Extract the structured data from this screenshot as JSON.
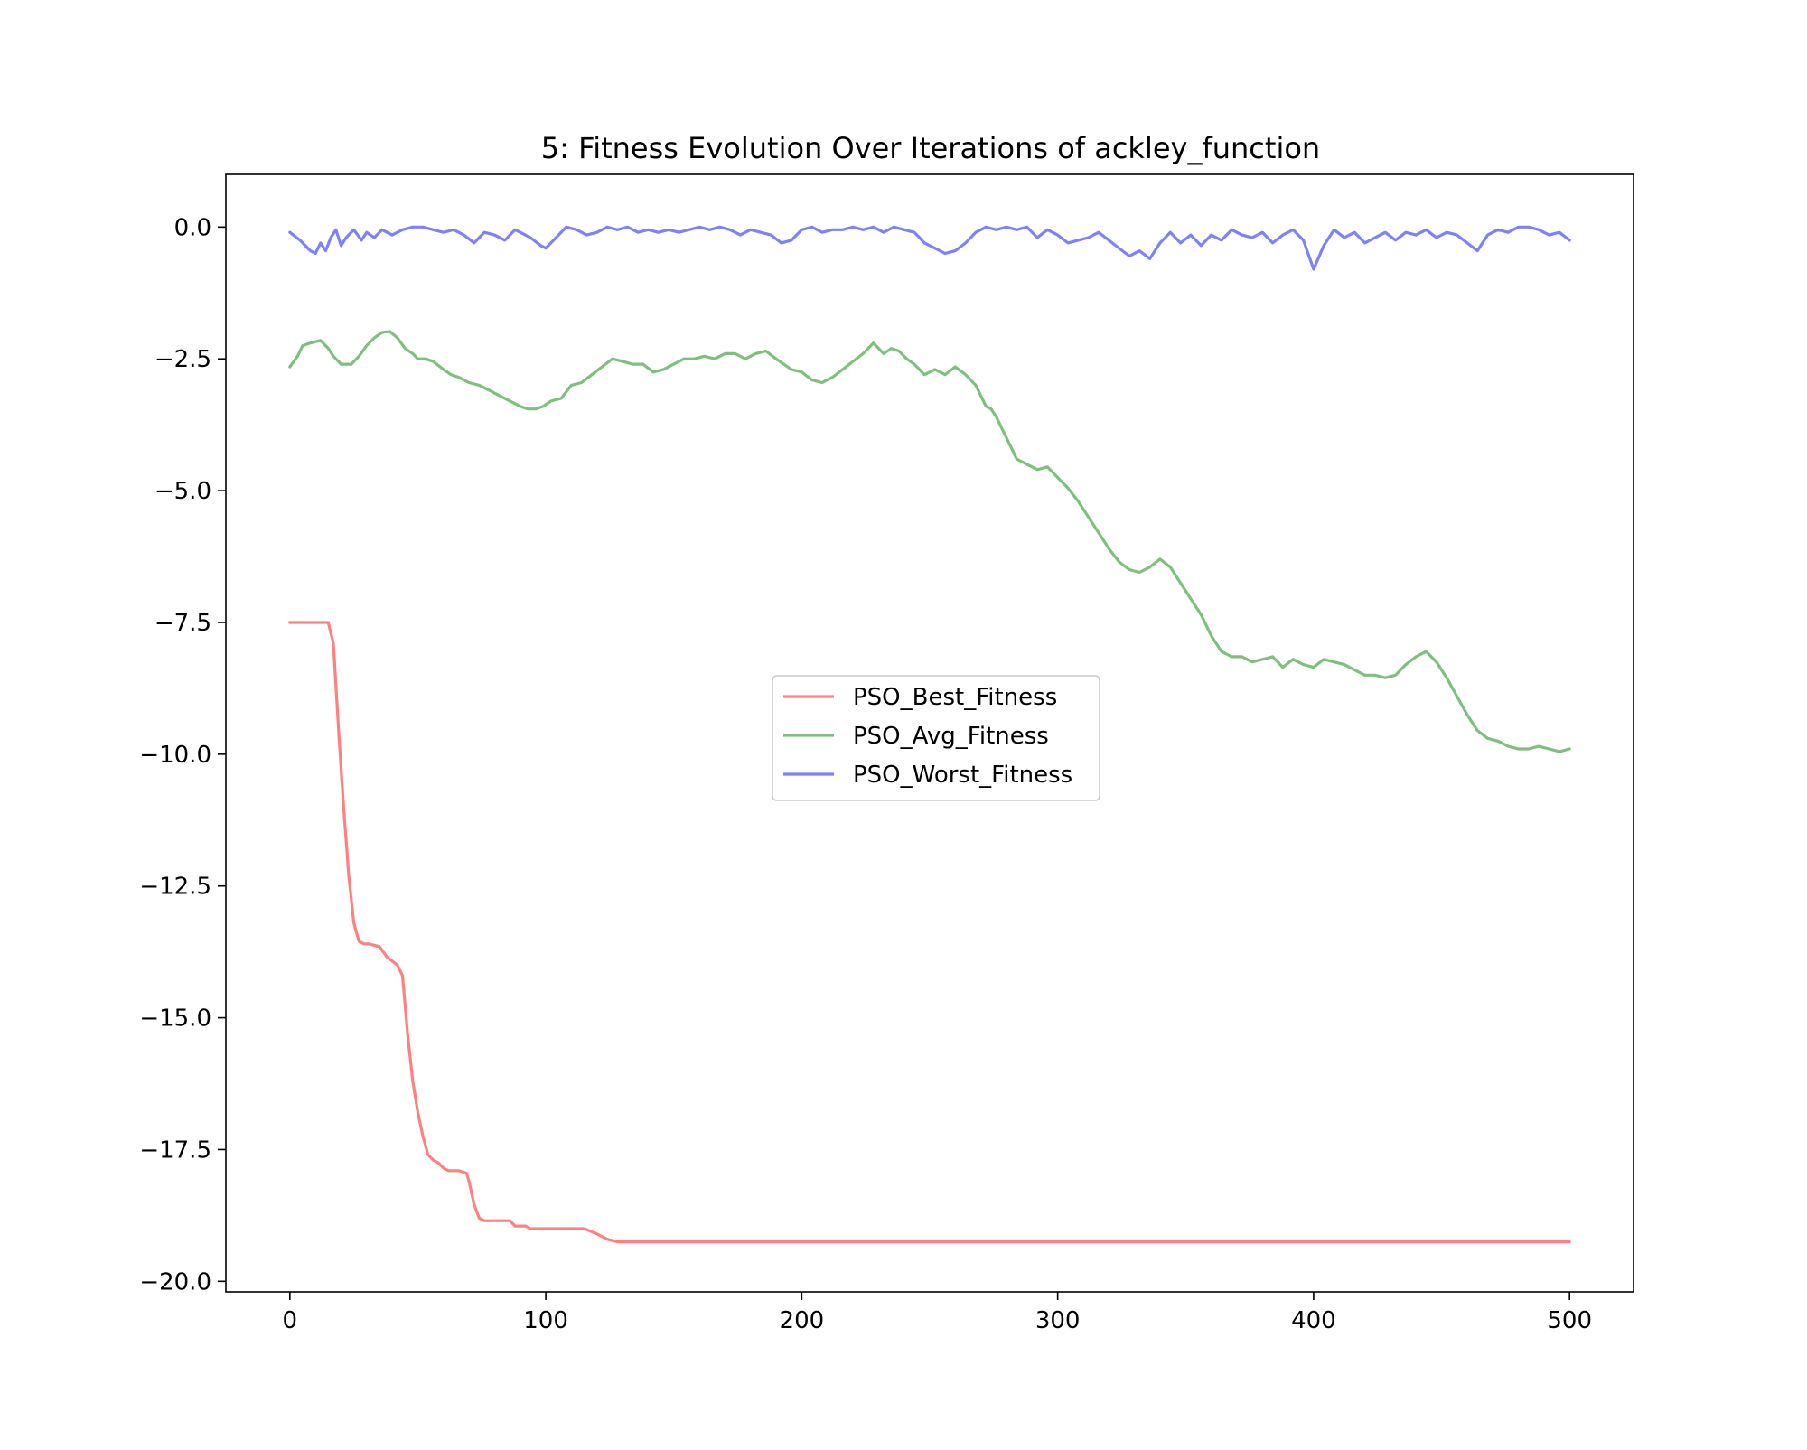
{
  "chart_data": {
    "type": "line",
    "title": "5: Fitness Evolution Over Iterations of ackley_function",
    "xlabel": "",
    "ylabel": "",
    "xlim": [
      -25,
      525
    ],
    "ylim": [
      -20.2,
      1
    ],
    "xticks": [
      0,
      100,
      200,
      300,
      400,
      500
    ],
    "xtick_labels": [
      "0",
      "100",
      "200",
      "300",
      "400",
      "500"
    ],
    "yticks": [
      0.0,
      -2.5,
      -5.0,
      -7.5,
      -10.0,
      -12.5,
      -15.0,
      -17.5,
      -20.0
    ],
    "ytick_labels": [
      "0.0",
      "−2.5",
      "−5.0",
      "−7.5",
      "−10.0",
      "−12.5",
      "−15.0",
      "−17.5",
      "−20.0"
    ],
    "grid": false,
    "legend_position": "center",
    "series": [
      {
        "name": "PSO_Best_Fitness",
        "color": "#ff8080",
        "x": [
          0,
          15,
          17,
          19,
          21,
          23,
          25,
          27,
          29,
          31,
          35,
          38,
          42,
          44,
          46,
          48,
          50,
          52,
          54,
          56,
          58,
          60,
          62,
          66,
          69,
          70,
          72,
          74,
          76,
          80,
          86,
          88,
          92,
          94,
          100,
          115,
          120,
          124,
          128,
          140,
          200,
          300,
          400,
          500
        ],
        "values": [
          -7.5,
          -7.5,
          -7.9,
          -9.5,
          -11.0,
          -12.3,
          -13.2,
          -13.55,
          -13.6,
          -13.6,
          -13.65,
          -13.85,
          -14.0,
          -14.2,
          -15.3,
          -16.2,
          -16.8,
          -17.25,
          -17.6,
          -17.7,
          -17.75,
          -17.85,
          -17.9,
          -17.9,
          -17.95,
          -18.1,
          -18.55,
          -18.8,
          -18.85,
          -18.85,
          -18.85,
          -18.95,
          -18.95,
          -19.0,
          -19.0,
          -19.0,
          -19.1,
          -19.2,
          -19.25,
          -19.25,
          -19.25,
          -19.25,
          -19.25,
          -19.25
        ]
      },
      {
        "name": "PSO_Avg_Fitness",
        "color": "#80bf80",
        "x": [
          0,
          3,
          5,
          8,
          12,
          15,
          17,
          20,
          24,
          27,
          30,
          33,
          36,
          39,
          42,
          45,
          48,
          50,
          53,
          56,
          60,
          63,
          66,
          70,
          74,
          78,
          82,
          86,
          90,
          93,
          96,
          99,
          102,
          106,
          110,
          114,
          118,
          122,
          126,
          130,
          134,
          138,
          142,
          146,
          150,
          154,
          158,
          162,
          166,
          170,
          174,
          178,
          182,
          186,
          190,
          193,
          196,
          200,
          204,
          208,
          212,
          216,
          220,
          224,
          228,
          232,
          235,
          238,
          241,
          244,
          248,
          252,
          256,
          260,
          264,
          268,
          270,
          272,
          274,
          276,
          278,
          280,
          284,
          288,
          292,
          296,
          300,
          304,
          308,
          312,
          316,
          320,
          324,
          328,
          332,
          336,
          340,
          344,
          348,
          352,
          356,
          360,
          364,
          368,
          372,
          376,
          380,
          384,
          388,
          392,
          396,
          400,
          404,
          408,
          412,
          416,
          420,
          424,
          428,
          432,
          436,
          440,
          444,
          448,
          452,
          456,
          460,
          464,
          468,
          472,
          476,
          480,
          484,
          488,
          492,
          496,
          500
        ],
        "values": [
          -2.65,
          -2.45,
          -2.25,
          -2.2,
          -2.15,
          -2.3,
          -2.45,
          -2.6,
          -2.6,
          -2.45,
          -2.25,
          -2.1,
          -2.0,
          -1.98,
          -2.1,
          -2.3,
          -2.4,
          -2.5,
          -2.5,
          -2.55,
          -2.7,
          -2.8,
          -2.85,
          -2.95,
          -3.0,
          -3.1,
          -3.2,
          -3.3,
          -3.4,
          -3.45,
          -3.45,
          -3.4,
          -3.3,
          -3.25,
          -3.0,
          -2.95,
          -2.8,
          -2.65,
          -2.5,
          -2.55,
          -2.6,
          -2.6,
          -2.75,
          -2.7,
          -2.6,
          -2.5,
          -2.5,
          -2.45,
          -2.5,
          -2.4,
          -2.4,
          -2.5,
          -2.4,
          -2.35,
          -2.5,
          -2.6,
          -2.7,
          -2.75,
          -2.9,
          -2.95,
          -2.85,
          -2.7,
          -2.55,
          -2.4,
          -2.2,
          -2.4,
          -2.3,
          -2.35,
          -2.5,
          -2.6,
          -2.8,
          -2.7,
          -2.8,
          -2.65,
          -2.8,
          -3.0,
          -3.2,
          -3.4,
          -3.45,
          -3.6,
          -3.8,
          -4.0,
          -4.4,
          -4.5,
          -4.6,
          -4.55,
          -4.75,
          -4.95,
          -5.2,
          -5.5,
          -5.8,
          -6.1,
          -6.35,
          -6.5,
          -6.55,
          -6.45,
          -6.3,
          -6.45,
          -6.75,
          -7.05,
          -7.35,
          -7.75,
          -8.05,
          -8.15,
          -8.15,
          -8.25,
          -8.2,
          -8.15,
          -8.35,
          -8.2,
          -8.3,
          -8.35,
          -8.2,
          -8.25,
          -8.3,
          -8.4,
          -8.5,
          -8.5,
          -8.55,
          -8.5,
          -8.3,
          -8.15,
          -8.05,
          -8.25,
          -8.55,
          -8.9,
          -9.25,
          -9.55,
          -9.7,
          -9.75,
          -9.85,
          -9.9,
          -9.9,
          -9.85,
          -9.9,
          -9.95,
          -9.9
        ],
        "values_note": ""
      },
      {
        "name": "PSO_Worst_Fitness",
        "color": "#8080ff",
        "x": [
          0,
          4,
          8,
          10,
          12,
          14,
          16,
          18,
          20,
          22,
          25,
          28,
          30,
          33,
          36,
          40,
          44,
          48,
          52,
          56,
          60,
          64,
          68,
          72,
          74,
          76,
          80,
          84,
          88,
          90,
          94,
          98,
          100,
          104,
          108,
          112,
          116,
          120,
          124,
          128,
          132,
          136,
          140,
          144,
          148,
          152,
          156,
          160,
          164,
          168,
          172,
          176,
          180,
          184,
          188,
          192,
          196,
          200,
          204,
          208,
          212,
          216,
          220,
          224,
          228,
          232,
          236,
          240,
          244,
          248,
          252,
          256,
          260,
          264,
          268,
          272,
          276,
          280,
          284,
          288,
          292,
          296,
          300,
          304,
          308,
          312,
          316,
          320,
          324,
          328,
          332,
          336,
          340,
          344,
          348,
          352,
          356,
          360,
          364,
          368,
          372,
          376,
          380,
          384,
          388,
          392,
          396,
          400,
          404,
          408,
          412,
          416,
          420,
          424,
          428,
          432,
          436,
          440,
          444,
          448,
          452,
          456,
          460,
          464,
          468,
          472,
          476,
          480,
          484,
          488,
          492,
          496,
          500
        ],
        "values": [
          -0.1,
          -0.25,
          -0.45,
          -0.5,
          -0.3,
          -0.45,
          -0.2,
          -0.05,
          -0.35,
          -0.2,
          -0.05,
          -0.25,
          -0.1,
          -0.2,
          -0.05,
          -0.15,
          -0.05,
          0.0,
          0.0,
          -0.05,
          -0.1,
          -0.05,
          -0.15,
          -0.3,
          -0.2,
          -0.1,
          -0.15,
          -0.25,
          -0.05,
          -0.1,
          -0.2,
          -0.35,
          -0.4,
          -0.2,
          0.0,
          -0.05,
          -0.15,
          -0.1,
          0.0,
          -0.05,
          0.0,
          -0.1,
          -0.05,
          -0.1,
          -0.05,
          -0.1,
          -0.05,
          0.0,
          -0.05,
          0.0,
          -0.05,
          -0.15,
          -0.05,
          -0.1,
          -0.15,
          -0.3,
          -0.25,
          -0.05,
          0.0,
          -0.1,
          -0.05,
          -0.05,
          0.0,
          -0.05,
          0.0,
          -0.1,
          0.0,
          -0.05,
          -0.1,
          -0.3,
          -0.4,
          -0.5,
          -0.45,
          -0.3,
          -0.1,
          0.0,
          -0.05,
          0.0,
          -0.05,
          0.0,
          -0.2,
          -0.05,
          -0.15,
          -0.3,
          -0.25,
          -0.2,
          -0.1,
          -0.25,
          -0.4,
          -0.55,
          -0.45,
          -0.6,
          -0.3,
          -0.1,
          -0.3,
          -0.15,
          -0.35,
          -0.15,
          -0.25,
          -0.05,
          -0.15,
          -0.2,
          -0.1,
          -0.3,
          -0.15,
          -0.05,
          -0.25,
          -0.8,
          -0.35,
          -0.05,
          -0.2,
          -0.1,
          -0.3,
          -0.2,
          -0.1,
          -0.25,
          -0.1,
          -0.15,
          -0.05,
          -0.2,
          -0.1,
          -0.15,
          -0.3,
          -0.45,
          -0.15,
          -0.05,
          -0.1,
          0.0,
          0.0,
          -0.05,
          -0.15,
          -0.1,
          -0.25
        ]
      }
    ]
  }
}
